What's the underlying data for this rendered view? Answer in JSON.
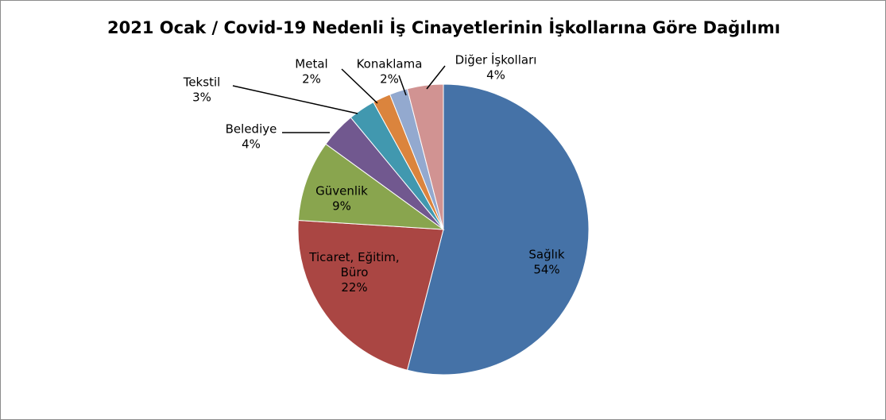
{
  "chart_data": {
    "type": "pie",
    "title": "2021 Ocak / Covid-19 Nedenli İş Cinayetlerinin İşkollarına Göre Dağılımı",
    "slices": [
      {
        "label": [
          "Sağlık"
        ],
        "value": 54,
        "pct": "54%",
        "color": "#4572a7"
      },
      {
        "label": [
          "Ticaret, Eğitim,",
          "Büro"
        ],
        "value": 22,
        "pct": "22%",
        "color": "#aa4643"
      },
      {
        "label": [
          "Güvenlik"
        ],
        "value": 9,
        "pct": "9%",
        "color": "#89a54e"
      },
      {
        "label": [
          "Belediye"
        ],
        "value": 4,
        "pct": "4%",
        "color": "#71588f"
      },
      {
        "label": [
          "Tekstil"
        ],
        "value": 3,
        "pct": "3%",
        "color": "#4198af"
      },
      {
        "label": [
          "Metal"
        ],
        "value": 2,
        "pct": "2%",
        "color": "#db843d"
      },
      {
        "label": [
          "Konaklama"
        ],
        "value": 2,
        "pct": "2%",
        "color": "#93a9cf"
      },
      {
        "label": [
          "Diğer İşkolları"
        ],
        "value": 4,
        "pct": "4%",
        "color": "#d19392"
      }
    ]
  }
}
